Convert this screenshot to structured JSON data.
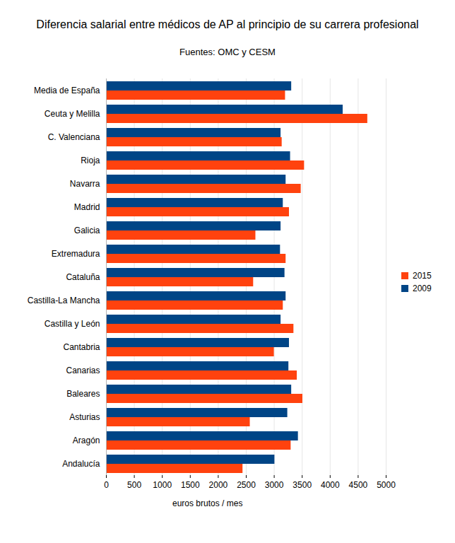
{
  "chart_data": {
    "type": "bar",
    "orientation": "horizontal",
    "title": "Diferencia salarial entre médicos de AP al principio de su carrera profesional",
    "subtitle": "Fuentes: OMC y CESM",
    "x_label": "euros brutos / mes",
    "categories": [
      "Media de España",
      "Ceuta y Melilla",
      "C. Valenciana",
      "Rioja",
      "Navarra",
      "Madrid",
      "Galicia",
      "Extremadura",
      "Cataluña",
      "Castilla-La Mancha",
      "Castilla y León",
      "Cantabria",
      "Canarias",
      "Baleares",
      "Asturias",
      "Aragón",
      "Andalucía"
    ],
    "series": [
      {
        "name": "2015",
        "color": "#ff420e",
        "values": [
          3200,
          4670,
          3140,
          3540,
          3480,
          3270,
          2670,
          3210,
          2630,
          3160,
          3350,
          3000,
          3410,
          3510,
          2570,
          3300,
          2440
        ]
      },
      {
        "name": "2009",
        "color": "#004586",
        "values": [
          3310,
          4230,
          3120,
          3290,
          3210,
          3160,
          3120,
          3110,
          3190,
          3210,
          3120,
          3270,
          3260,
          3310,
          3240,
          3430,
          3010
        ]
      }
    ],
    "xlim": [
      0,
      5000
    ],
    "xticks": [
      0,
      500,
      1000,
      1500,
      2000,
      2500,
      3000,
      3500,
      4000,
      4500,
      5000
    ],
    "grid": true,
    "legend": "right"
  }
}
